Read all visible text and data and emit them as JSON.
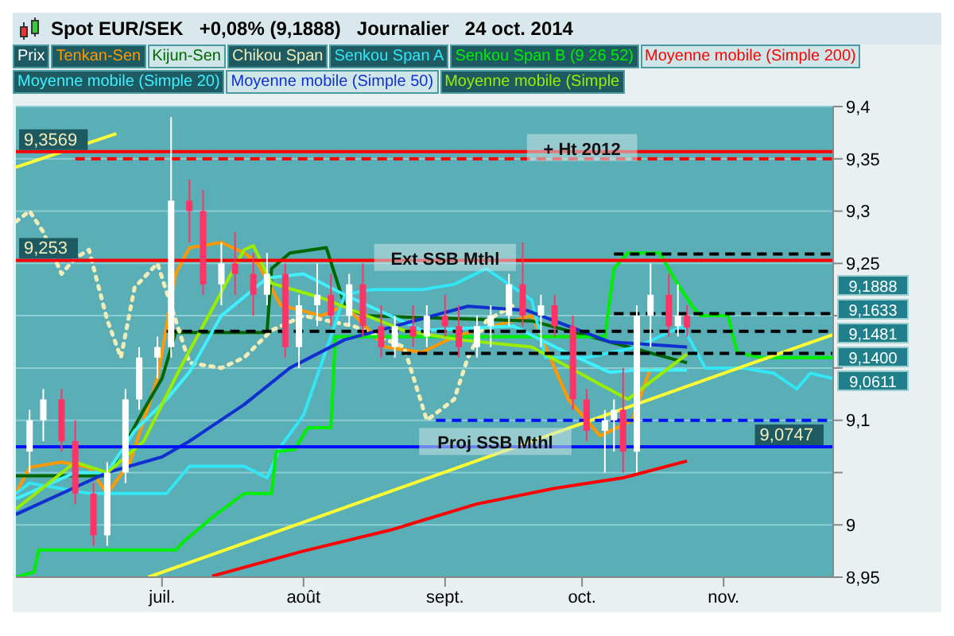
{
  "chart_data": {
    "type": "candlestick",
    "title": "Spot EUR/SEK   +0,08% (9,1888)   Journalier   24 oct. 2014",
    "xlim": [
      "2014-05-30",
      "2014-11-25"
    ],
    "xticks": [
      {
        "value": "2014-07-01",
        "label": "juil."
      },
      {
        "value": "2014-08-01",
        "label": "août"
      },
      {
        "value": "2014-09-01",
        "label": "sept."
      },
      {
        "value": "2014-10-01",
        "label": "oct."
      },
      {
        "value": "2014-11-01",
        "label": "nov."
      }
    ],
    "ylim": [
      8.95,
      9.4
    ],
    "yticks": [
      {
        "value": 8.95,
        "label": "8,95"
      },
      {
        "value": 9,
        "label": "9"
      },
      {
        "value": 9.05,
        "label": null
      },
      {
        "value": 9.1,
        "label": "9,1"
      },
      {
        "value": 9.15,
        "label": null
      },
      {
        "value": 9.2,
        "label": null
      },
      {
        "value": 9.25,
        "label": "9,25"
      },
      {
        "value": 9.3,
        "label": "9,3"
      },
      {
        "value": 9.35,
        "label": "9,35"
      },
      {
        "value": 9.4,
        "label": "9,4"
      }
    ],
    "grid": "y",
    "legend": "top left",
    "series": [
      {
        "type": "candlestick",
        "name": "Prix",
        "color": "#ffffff",
        "x": [
          "2014-06-02",
          "2014-06-05",
          "2014-06-09",
          "2014-06-12",
          "2014-06-16",
          "2014-06-19",
          "2014-06-23",
          "2014-06-26",
          "2014-06-30",
          "2014-07-03",
          "2014-07-07",
          "2014-07-10",
          "2014-07-14",
          "2014-07-17",
          "2014-07-21",
          "2014-07-24",
          "2014-07-28",
          "2014-07-31",
          "2014-08-04",
          "2014-08-07",
          "2014-08-11",
          "2014-08-14",
          "2014-08-18",
          "2014-08-21",
          "2014-08-25",
          "2014-08-28",
          "2014-09-01",
          "2014-09-04",
          "2014-09-08",
          "2014-09-11",
          "2014-09-15",
          "2014-09-18",
          "2014-09-22",
          "2014-09-25",
          "2014-09-29",
          "2014-10-02",
          "2014-10-06",
          "2014-10-08",
          "2014-10-10",
          "2014-10-13",
          "2014-10-16",
          "2014-10-20",
          "2014-10-22",
          "2014-10-24"
        ],
        "ohlc": [
          [
            9.07,
            9.11,
            9.05,
            9.1
          ],
          [
            9.1,
            9.13,
            9.08,
            9.12
          ],
          [
            9.12,
            9.13,
            9.07,
            9.08
          ],
          [
            9.08,
            9.1,
            9.02,
            9.03
          ],
          [
            9.03,
            9.04,
            8.98,
            8.99
          ],
          [
            8.99,
            9.06,
            8.98,
            9.05
          ],
          [
            9.05,
            9.13,
            9.04,
            9.12
          ],
          [
            9.12,
            9.17,
            9.11,
            9.16
          ],
          [
            9.16,
            9.18,
            9.14,
            9.17
          ],
          [
            9.17,
            9.39,
            9.16,
            9.31
          ],
          [
            9.31,
            9.33,
            9.27,
            9.3
          ],
          [
            9.3,
            9.32,
            9.22,
            9.23
          ],
          [
            9.23,
            9.27,
            9.21,
            9.25
          ],
          [
            9.25,
            9.28,
            9.22,
            9.24
          ],
          [
            9.24,
            9.26,
            9.2,
            9.22
          ],
          [
            9.22,
            9.26,
            9.21,
            9.24
          ],
          [
            9.24,
            9.25,
            9.16,
            9.17
          ],
          [
            9.17,
            9.22,
            9.15,
            9.21
          ],
          [
            9.21,
            9.25,
            9.19,
            9.22
          ],
          [
            9.22,
            9.24,
            9.19,
            9.2
          ],
          [
            9.2,
            9.24,
            9.19,
            9.23
          ],
          [
            9.23,
            9.25,
            9.18,
            9.19
          ],
          [
            9.19,
            9.21,
            9.16,
            9.17
          ],
          [
            9.17,
            9.2,
            9.16,
            9.19
          ],
          [
            9.19,
            9.21,
            9.17,
            9.18
          ],
          [
            9.18,
            9.21,
            9.17,
            9.2
          ],
          [
            9.2,
            9.22,
            9.18,
            9.19
          ],
          [
            9.19,
            9.21,
            9.16,
            9.17
          ],
          [
            9.17,
            9.2,
            9.16,
            9.19
          ],
          [
            9.19,
            9.21,
            9.17,
            9.2
          ],
          [
            9.2,
            9.24,
            9.19,
            9.23
          ],
          [
            9.23,
            9.27,
            9.19,
            9.2
          ],
          [
            9.2,
            9.22,
            9.17,
            9.21
          ],
          [
            9.21,
            9.22,
            9.18,
            9.19
          ],
          [
            9.19,
            9.2,
            9.11,
            9.12
          ],
          [
            9.12,
            9.13,
            9.08,
            9.09
          ],
          [
            9.09,
            9.11,
            9.05,
            9.1
          ],
          [
            9.1,
            9.12,
            9.07,
            9.11
          ],
          [
            9.11,
            9.15,
            9.05,
            9.07
          ],
          [
            9.07,
            9.21,
            9.05,
            9.2
          ],
          [
            9.2,
            9.25,
            9.17,
            9.22
          ],
          [
            9.22,
            9.24,
            9.18,
            9.19
          ],
          [
            9.19,
            9.23,
            9.18,
            9.2
          ],
          [
            9.2,
            9.21,
            9.18,
            9.1888
          ]
        ],
        "colors": [
          "#ffffff",
          "#ffffff",
          "#ff3366",
          "#ff3366",
          "#ff3366",
          "#ffffff",
          "#ffffff",
          "#ffffff",
          "#ffffff",
          "#ffffff",
          "#ff3366",
          "#ff3366",
          "#ffffff",
          "#ff3366",
          "#ff3366",
          "#ffffff",
          "#ff3366",
          "#ffffff",
          "#ffffff",
          "#ff3366",
          "#ffffff",
          "#ff3366",
          "#ff3366",
          "#ffffff",
          "#ff3366",
          "#ffffff",
          "#ff3366",
          "#ff3366",
          "#ffffff",
          "#ffffff",
          "#ffffff",
          "#ff3366",
          "#ffffff",
          "#ff3366",
          "#ff3366",
          "#ff3366",
          "#ffffff",
          "#ffffff",
          "#ff3366",
          "#ffffff",
          "#ffffff",
          "#ff3366",
          "#ffffff",
          "#ff3366"
        ]
      },
      {
        "type": "line",
        "name": "Tenkan-Sen",
        "color": "#ff9900",
        "x": [
          "2014-05-30",
          "2014-06-02",
          "2014-06-09",
          "2014-06-15",
          "2014-06-19",
          "2014-06-24",
          "2014-06-30",
          "2014-07-04",
          "2014-07-07",
          "2014-07-14",
          "2014-07-19",
          "2014-07-22",
          "2014-07-27",
          "2014-08-05",
          "2014-08-10",
          "2014-08-19",
          "2014-08-27",
          "2014-09-03",
          "2014-09-20",
          "2014-09-28",
          "2014-10-05",
          "2014-10-12",
          "2014-10-16"
        ],
        "values": [
          9.03,
          9.055,
          9.06,
          9.055,
          9.03,
          9.06,
          9.14,
          9.24,
          9.265,
          9.27,
          9.26,
          9.25,
          9.21,
          9.2,
          9.21,
          9.17,
          9.165,
          9.18,
          9.2,
          9.12,
          9.085,
          9.1,
          9.15
        ]
      },
      {
        "type": "line",
        "name": "Kijun-Sen",
        "color": "#006600",
        "x": [
          "2014-05-30",
          "2014-06-19",
          "2014-06-22",
          "2014-06-27",
          "2014-07-01",
          "2014-07-04",
          "2014-07-24",
          "2014-07-25",
          "2014-07-29",
          "2014-08-06",
          "2014-08-10",
          "2014-08-14",
          "2014-09-20",
          "2014-10-07",
          "2014-10-24"
        ],
        "values": [
          9.047,
          9.047,
          9.07,
          9.11,
          9.14,
          9.184,
          9.184,
          9.245,
          9.26,
          9.265,
          9.21,
          9.2,
          9.195,
          9.175,
          9.155
        ]
      },
      {
        "type": "line",
        "name": "Chikou Span",
        "color": "#f2ecb8",
        "line_style": "dotted",
        "x": [
          "2014-05-30",
          "2014-06-02",
          "2014-06-05",
          "2014-06-09",
          "2014-06-12",
          "2014-06-15",
          "2014-06-19",
          "2014-06-22",
          "2014-06-25",
          "2014-06-30",
          "2014-07-07",
          "2014-07-14",
          "2014-07-19",
          "2014-07-25",
          "2014-08-01",
          "2014-08-12",
          "2014-08-23",
          "2014-08-28",
          "2014-09-03",
          "2014-09-06",
          "2014-09-10",
          "2014-09-16"
        ],
        "values": [
          9.29,
          9.3,
          9.28,
          9.24,
          9.255,
          9.263,
          9.196,
          9.16,
          9.227,
          9.25,
          9.155,
          9.15,
          9.16,
          9.186,
          9.2,
          9.19,
          9.17,
          9.1,
          9.12,
          9.16,
          9.195,
          9.21
        ]
      },
      {
        "type": "line",
        "name": "Senkou Span A",
        "color": "#33e6f5",
        "x": [
          "2014-05-30",
          "2014-06-02",
          "2014-06-15",
          "2014-06-24",
          "2014-07-02",
          "2014-07-07",
          "2014-07-19",
          "2014-07-24",
          "2014-07-27",
          "2014-08-01",
          "2014-08-07",
          "2014-08-10",
          "2014-08-16",
          "2014-08-27",
          "2014-09-03",
          "2014-09-10",
          "2014-09-20",
          "2014-09-23",
          "2014-10-02",
          "2014-10-13",
          "2014-10-23",
          "2014-10-28",
          "2014-11-05",
          "2014-11-12",
          "2014-11-17",
          "2014-11-20",
          "2014-11-25"
        ],
        "values": [
          9.03,
          9.04,
          9.03,
          9.03,
          9.03,
          9.056,
          9.056,
          9.045,
          9.075,
          9.105,
          9.18,
          9.22,
          9.225,
          9.225,
          9.23,
          9.245,
          9.215,
          9.16,
          9.16,
          9.17,
          9.19,
          9.15,
          9.15,
          9.145,
          9.13,
          9.145,
          9.14
        ]
      },
      {
        "type": "line",
        "name": "Senkou Span B (9 26 52)",
        "color": "#00ee00",
        "x": [
          "2014-05-30",
          "2014-06-03",
          "2014-06-04",
          "2014-07-04",
          "2014-07-06",
          "2014-07-12",
          "2014-07-19",
          "2014-07-25",
          "2014-07-26",
          "2014-07-30",
          "2014-08-02",
          "2014-08-07",
          "2014-08-08",
          "2014-10-06",
          "2014-10-08",
          "2014-10-11",
          "2014-10-18",
          "2014-10-22",
          "2014-10-25",
          "2014-10-27",
          "2014-11-02",
          "2014-11-04",
          "2014-11-09",
          "2014-11-25"
        ],
        "values": [
          8.95,
          8.955,
          8.976,
          8.976,
          8.985,
          9.007,
          9.03,
          9.03,
          9.07,
          9.072,
          9.093,
          9.093,
          9.18,
          9.18,
          9.245,
          9.26,
          9.26,
          9.23,
          9.21,
          9.2,
          9.2,
          9.165,
          9.16,
          9.16
        ]
      },
      {
        "type": "line",
        "name": "Moyenne mobile (Simple 200)",
        "color": "#ff0000",
        "x": [
          "2014-07-12",
          "2014-08-01",
          "2014-08-20",
          "2014-09-08",
          "2014-09-25",
          "2014-10-10",
          "2014-10-24"
        ],
        "values": [
          8.951,
          8.975,
          8.995,
          9.02,
          9.035,
          9.045,
          9.0611
        ]
      },
      {
        "type": "line",
        "name": "Moyenne mobile (Simple 20)",
        "color": "#40f0ff",
        "x": [
          "2014-05-30",
          "2014-06-12",
          "2014-06-19",
          "2014-06-25",
          "2014-07-02",
          "2014-07-07",
          "2014-07-14",
          "2014-07-24",
          "2014-08-01",
          "2014-08-10",
          "2014-08-27",
          "2014-09-16",
          "2014-09-27",
          "2014-10-07",
          "2014-10-13",
          "2014-10-24"
        ],
        "values": [
          9.025,
          9.05,
          9.05,
          9.09,
          9.12,
          9.146,
          9.2,
          9.236,
          9.24,
          9.22,
          9.186,
          9.19,
          9.166,
          9.146,
          9.148,
          9.1481
        ]
      },
      {
        "type": "line",
        "name": "Moyenne mobile (Simple 50)",
        "color": "#1030d0",
        "x": [
          "2014-05-30",
          "2014-06-19",
          "2014-07-01",
          "2014-07-07",
          "2014-07-19",
          "2014-07-29",
          "2014-08-10",
          "2014-09-06",
          "2014-09-19",
          "2014-10-07",
          "2014-10-24"
        ],
        "values": [
          9.01,
          9.05,
          9.065,
          9.08,
          9.115,
          9.15,
          9.177,
          9.209,
          9.205,
          9.175,
          9.17
        ]
      },
      {
        "type": "line",
        "name": "Moyenne mobile (Simple",
        "color": "#99ee00",
        "x": [
          "2014-05-30",
          "2014-06-12",
          "2014-06-19",
          "2014-06-27",
          "2014-07-05",
          "2014-07-19",
          "2014-07-21",
          "2014-07-25",
          "2014-08-05",
          "2014-08-23",
          "2014-09-04",
          "2014-09-20",
          "2014-10-11",
          "2014-10-24"
        ],
        "values": [
          9.015,
          9.06,
          9.05,
          9.08,
          9.15,
          9.263,
          9.267,
          9.231,
          9.217,
          9.186,
          9.177,
          9.17,
          9.12,
          9.1633
        ]
      },
      {
        "type": "line",
        "color": "#ffff33",
        "x": [
          "2014-06-28",
          "2014-11-25"
        ],
        "values": [
          8.95,
          9.182
        ]
      },
      {
        "type": "line",
        "color": "#ffff33",
        "x": [
          "2014-05-30",
          "2014-06-21"
        ],
        "values": [
          9.342,
          9.374
        ]
      },
      {
        "type": "line",
        "color": "#ff0000",
        "line_style": "dashed",
        "x": [
          "2014-06-12",
          "2014-11-25"
        ],
        "values": [
          9.35,
          9.35
        ]
      },
      {
        "type": "line",
        "color": "#000000",
        "line_style": "dashed",
        "x": [
          "2014-10-08",
          "2014-11-25"
        ],
        "values": [
          9.259,
          9.259
        ]
      },
      {
        "type": "line",
        "color": "#000000",
        "line_style": "dashed",
        "x": [
          "2014-10-08",
          "2014-11-25"
        ],
        "values": [
          9.202,
          9.202
        ]
      },
      {
        "type": "line",
        "color": "#000000",
        "line_style": "dashed",
        "x": [
          "2014-07-02",
          "2014-11-25"
        ],
        "values": [
          9.185,
          9.185
        ]
      },
      {
        "type": "line",
        "color": "#000000",
        "line_style": "dashed",
        "x": [
          "2014-08-19",
          "2014-11-25"
        ],
        "values": [
          9.164,
          9.164
        ]
      },
      {
        "type": "line",
        "color": "#0010ff",
        "line_style": "dashed",
        "x": [
          "2014-08-30",
          "2014-11-25"
        ],
        "values": [
          9.1,
          9.1
        ]
      }
    ],
    "ref_lines": [
      {
        "axis": "y",
        "value": 9.3569,
        "label": "9,3569",
        "color": "#ff0000"
      },
      {
        "axis": "y",
        "value": 9.253,
        "label": "9,253",
        "color": "#ff0000"
      },
      {
        "axis": "y",
        "value": 9.0747,
        "label": "9,0747",
        "color": "#0010ff"
      }
    ],
    "annotations": [
      {
        "text": "+ Ht 2012",
        "x": "2014-10-01",
        "y": 9.36
      },
      {
        "text": "Ext SSB Mthl",
        "x": "2014-09-01",
        "y": 9.255
      },
      {
        "text": "Proj SSB Mthl",
        "x": "2014-09-12",
        "y": 9.079
      },
      "9,1888",
      "9,1633",
      "9,1481",
      "9,1400",
      "9,0611"
    ]
  }
}
